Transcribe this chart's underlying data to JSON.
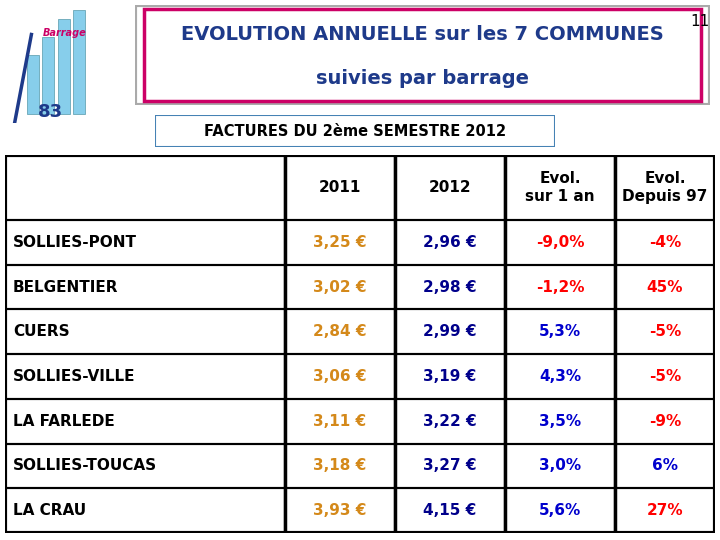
{
  "page_number": "11",
  "title_line1": "EVOLUTION ANNUELLE sur les 7 COMMUNES",
  "title_line2": "suivies par barrage",
  "subtitle": "FACTURES DU 2ème SEMESTRE 2012",
  "col_headers": [
    "",
    "2011",
    "2012",
    "Evol.\nsur 1 an",
    "Evol.\nDepuis 97"
  ],
  "rows": [
    {
      "commune": "SOLLIES-PONT",
      "v2011": "3,25 €",
      "v2012": "2,96 €",
      "evol1": "-9,0%",
      "evol97": "-4%"
    },
    {
      "commune": "BELGENTIER",
      "v2011": "3,02 €",
      "v2012": "2,98 €",
      "evol1": "-1,2%",
      "evol97": "45%"
    },
    {
      "commune": "CUERS",
      "v2011": "2,84 €",
      "v2012": "2,99 €",
      "evol1": "5,3%",
      "evol97": "-5%"
    },
    {
      "commune": "SOLLIES-VILLE",
      "v2011": "3,06 €",
      "v2012": "3,19 €",
      "evol1": "4,3%",
      "evol97": "-5%"
    },
    {
      "commune": "LA FARLEDE",
      "v2011": "3,11 €",
      "v2012": "3,22 €",
      "evol1": "3,5%",
      "evol97": "-9%"
    },
    {
      "commune": "SOLLIES-TOUCAS",
      "v2011": "3,18 €",
      "v2012": "3,27 €",
      "evol1": "3,0%",
      "evol97": "6%"
    },
    {
      "commune": "LA CRAU",
      "v2011": "3,93 €",
      "v2012": "4,15 €",
      "evol1": "5,6%",
      "evol97": "27%"
    }
  ],
  "color_2011": "#D4891A",
  "color_2012": "#00008B",
  "color_evol1_neg": "#FF0000",
  "color_evol1_pos": "#0000CD",
  "color_evol97_6pct": "#0000CD",
  "color_evol97_other": "#FF0000",
  "title_color": "#1E3A8A",
  "title_border": "#CC0066",
  "subtitle_border": "#4682B4",
  "bg_color": "#FFFFFF",
  "commune_color": "#000000",
  "header_color": "#000000",
  "logo_bar_color": "#87CEEB",
  "logo_text_color": "#CC0066",
  "logo_num_color": "#1E3A8A",
  "logo_line_color": "#1E3A8A"
}
